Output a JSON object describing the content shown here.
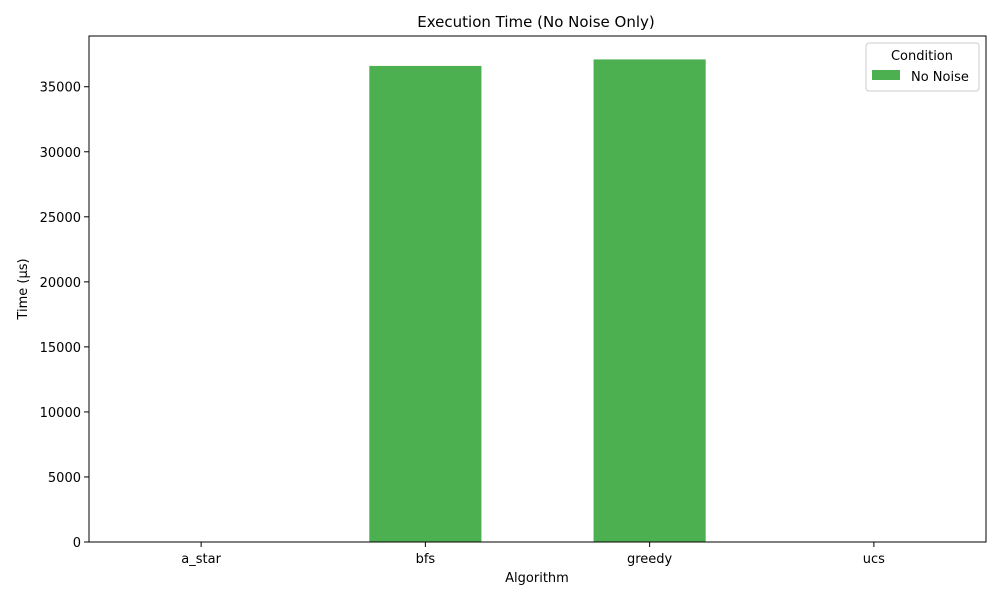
{
  "chart_data": {
    "type": "bar",
    "title": "Execution Time (No Noise Only)",
    "xlabel": "Algorithm",
    "ylabel": "Time (µs)",
    "categories": [
      "a_star",
      "bfs",
      "greedy",
      "ucs"
    ],
    "series": [
      {
        "name": "No Noise",
        "color": "#4caf50",
        "values": [
          0,
          36600,
          37100,
          0
        ]
      }
    ],
    "ylim": [
      0,
      38900
    ],
    "yticks": [
      0,
      5000,
      10000,
      15000,
      20000,
      25000,
      30000,
      35000
    ],
    "grid": false,
    "legend": {
      "title": "Condition",
      "placement": "top-right"
    }
  }
}
